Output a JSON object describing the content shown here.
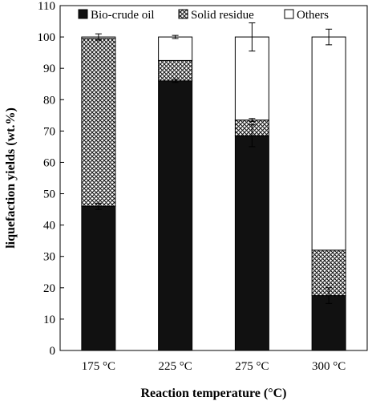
{
  "chart_data": {
    "type": "bar",
    "stacked": true,
    "title": "",
    "xlabel": "Reaction temperature (°C)",
    "ylabel": "liquefaction yields (wt.%)",
    "ylim": [
      0,
      110
    ],
    "yticks": [
      0,
      10,
      20,
      30,
      40,
      50,
      60,
      70,
      80,
      90,
      100,
      110
    ],
    "categories": [
      "175 °C",
      "225 °C",
      "275 °C",
      "300 °C"
    ],
    "series": [
      {
        "name": "Bio-crude oil",
        "values": [
          46,
          86,
          68.5,
          17.5
        ],
        "errors": [
          1,
          0.5,
          3.5,
          2.5
        ],
        "color": "#111111",
        "pattern": "solid"
      },
      {
        "name": "Solid residue",
        "values": [
          53.5,
          6.5,
          5,
          14.5
        ],
        "errors": [
          0,
          0,
          0.5,
          0
        ],
        "color": "#000000",
        "pattern": "crosshatch"
      },
      {
        "name": "Others",
        "values": [
          0.5,
          7.5,
          26.5,
          68
        ],
        "errors": [
          1,
          0.5,
          4.5,
          2.5
        ],
        "color": "#ffffff",
        "pattern": "empty"
      }
    ],
    "legend_position": "top",
    "grid": false
  }
}
